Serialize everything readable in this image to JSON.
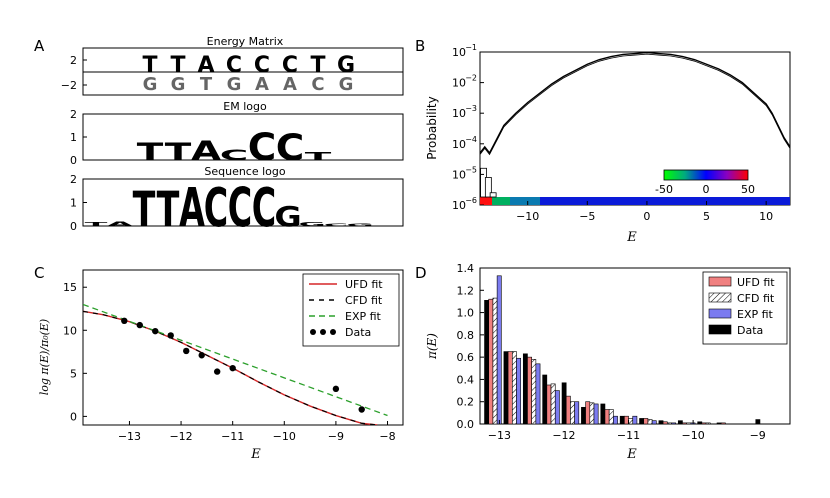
{
  "figure": {
    "panel_labels": [
      "A",
      "B",
      "C",
      "D"
    ]
  },
  "chart_data": [
    {
      "panel": "A",
      "type": "other",
      "subpanels": [
        {
          "title": "Energy Matrix",
          "yticks": [
            "2",
            "−2"
          ],
          "columns": [
            {
              "top": [
                [
                  "T",
                  "#d62728"
                ]
              ],
              "bottom": [
                [
                  "G",
                  "#f2a93b"
                ]
              ]
            },
            {
              "top": [
                [
                  "T",
                  "#d62728"
                ]
              ],
              "bottom": [
                [
                  "G",
                  "#f2a93b"
                ]
              ]
            },
            {
              "top": [
                [
                  "A",
                  "#2ca02c"
                ]
              ],
              "bottom": [
                [
                  "T",
                  "#d62728"
                ]
              ]
            },
            {
              "top": [
                [
                  "C",
                  "#1f3bd6"
                ]
              ],
              "bottom": [
                [
                  "G",
                  "#f2a93b"
                ]
              ]
            },
            {
              "top": [
                [
                  "C",
                  "#1f3bd6"
                ]
              ],
              "bottom": [
                [
                  "A",
                  "#2ca02c"
                ]
              ]
            },
            {
              "top": [
                [
                  "C",
                  "#1f3bd6"
                ]
              ],
              "bottom": [
                [
                  "A",
                  "#2ca02c"
                ]
              ]
            },
            {
              "top": [
                [
                  "T",
                  "#d62728"
                ]
              ],
              "bottom": [
                [
                  "C",
                  "#1f3bd6"
                ]
              ]
            },
            {
              "top": [
                [
                  "G",
                  "#f2a93b"
                ]
              ],
              "bottom": [
                [
                  "G",
                  "#f2a93b"
                ]
              ]
            }
          ]
        },
        {
          "title": "EM logo",
          "yticks": [
            "2",
            "1",
            "0"
          ],
          "letters": [
            "T",
            "T",
            "A",
            "C",
            "C",
            "C",
            "T",
            ""
          ],
          "colors": [
            "#d62728",
            "#d62728",
            "#2ca02c",
            "#1f3bd6",
            "#1f3bd6",
            "#1f3bd6",
            "#d62728",
            "#d62728"
          ],
          "heights": [
            0.75,
            0.75,
            0.85,
            0.45,
            1.2,
            1.15,
            0.35,
            0.05
          ]
        },
        {
          "title": "Sequence logo",
          "yticks": [
            "2",
            "1",
            "0"
          ],
          "letters": [
            "T",
            "A",
            "T",
            "T",
            "A",
            "C",
            "C",
            "C",
            "G",
            "G",
            "C",
            "G"
          ],
          "colors": [
            "#d62728",
            "#2ca02c",
            "#d62728",
            "#d62728",
            "#2ca02c",
            "#1f3bd6",
            "#1f3bd6",
            "#1f3bd6",
            "#f2a93b",
            "#f2a93b",
            "#1f3bd6",
            "#f2a93b"
          ],
          "heights": [
            0.15,
            0.2,
            1.5,
            1.5,
            1.65,
            1.65,
            1.7,
            1.65,
            0.85,
            0.15,
            0.1,
            0.12
          ]
        }
      ]
    },
    {
      "panel": "B",
      "type": "line",
      "ylabel": "Probability",
      "xlabel": "E",
      "xlim": [
        -14,
        12
      ],
      "ylim_log10": [
        -6,
        -1
      ],
      "xticks": [
        -10,
        -5,
        0,
        5,
        10
      ],
      "ytick_labels": [
        "10",
        "10",
        "10",
        "10",
        "10",
        "10"
      ],
      "ytick_exponents": [
        "−1",
        "−2",
        "−3",
        "−4",
        "−5",
        "−6"
      ],
      "curve_log10": {
        "x": [
          -14,
          -13.6,
          -13.2,
          -12.8,
          -12.4,
          -12,
          -11,
          -10,
          -9,
          -8,
          -7,
          -6,
          -5,
          -4,
          -3,
          -2,
          -1,
          0,
          1,
          2,
          3,
          4,
          5,
          6,
          7,
          8,
          9,
          10,
          10.5,
          11,
          11.5,
          12
        ],
        "y": [
          -4.3,
          -4.1,
          -4.3,
          -4.0,
          -3.7,
          -3.4,
          -3.0,
          -2.65,
          -2.35,
          -2.05,
          -1.8,
          -1.6,
          -1.4,
          -1.25,
          -1.15,
          -1.08,
          -1.05,
          -1.02,
          -1.05,
          -1.08,
          -1.15,
          -1.25,
          -1.4,
          -1.55,
          -1.75,
          -2.0,
          -2.35,
          -2.7,
          -3.0,
          -3.4,
          -3.8,
          -4.1
        ]
      },
      "histogram_log10": {
        "x": [
          -13.7,
          -13.3,
          -12.9,
          -12.5,
          -12.1,
          -11.7
        ],
        "y": [
          -4.8,
          -5.1,
          -5.6,
          -5.9,
          -5.9,
          -5.95
        ]
      },
      "colorbar": {
        "ticks": [
          "-50",
          "0",
          "50"
        ],
        "range": [
          -50,
          50
        ]
      }
    },
    {
      "panel": "C",
      "type": "line",
      "ylabel": "log π(E)/π₀(E)",
      "xlabel": "E",
      "xlim": [
        -13.9,
        -7.7
      ],
      "ylim": [
        -1,
        17
      ],
      "xticks": [
        -13,
        -12,
        -11,
        -10,
        -9,
        -8
      ],
      "yticks": [
        0,
        5,
        10,
        15
      ],
      "legend": [
        "UFD fit",
        "CFD fit",
        "EXP fit",
        "Data"
      ],
      "series": [
        {
          "name": "UFD fit",
          "color": "#d62728",
          "x": [
            -13.9,
            -13.5,
            -13,
            -12.5,
            -12,
            -11.5,
            -11,
            -10.5,
            -10,
            -9.5,
            -9,
            -8.5,
            -8.2
          ],
          "y": [
            12.2,
            11.8,
            11.0,
            9.9,
            8.6,
            7.1,
            5.6,
            4.0,
            2.5,
            1.2,
            0.1,
            -0.8,
            -1.0
          ]
        },
        {
          "name": "CFD fit",
          "color": "#000000",
          "x": [
            -13.9,
            -13.5,
            -13,
            -12.5,
            -12,
            -11.5,
            -11,
            -10.5,
            -10,
            -9.5,
            -9,
            -8.5,
            -8.2
          ],
          "y": [
            12.2,
            11.8,
            11.0,
            9.9,
            8.6,
            7.1,
            5.6,
            4.0,
            2.5,
            1.2,
            0.1,
            -0.8,
            -1.0
          ]
        },
        {
          "name": "EXP fit",
          "color": "#2ca02c",
          "x": [
            -13.9,
            -8.0
          ],
          "y": [
            13.0,
            0.1
          ]
        },
        {
          "name": "Data",
          "color": "#000000",
          "x": [
            -13.1,
            -12.8,
            -12.5,
            -12.2,
            -11.9,
            -11.6,
            -11.3,
            -11.0,
            -9.0,
            -8.5
          ],
          "y": [
            11.1,
            10.6,
            9.9,
            9.4,
            7.6,
            7.1,
            5.2,
            5.6,
            3.2,
            0.8
          ]
        }
      ]
    },
    {
      "panel": "D",
      "type": "bar",
      "ylabel": "π(E)",
      "xlabel": "E",
      "xlim": [
        -13.3,
        -8.5
      ],
      "ylim": [
        0,
        1.4
      ],
      "xticks": [
        -13,
        -12,
        -11,
        -10,
        -9
      ],
      "yticks": [
        0.0,
        0.2,
        0.4,
        0.6,
        0.8,
        1.0,
        1.2,
        1.4
      ],
      "legend": [
        "UFD fit",
        "CFD fit",
        "EXP fit",
        "Data"
      ],
      "categories": [
        -13.1,
        -12.8,
        -12.5,
        -12.2,
        -11.9,
        -11.6,
        -11.3,
        -11.0,
        -10.7,
        -10.4,
        -10.1,
        -9.8,
        -9.5,
        -9.2,
        -8.9,
        -8.6
      ],
      "series": [
        {
          "name": "Data",
          "color": "#000000",
          "values": [
            1.11,
            0.65,
            0.63,
            0.44,
            0.37,
            0.15,
            0.18,
            0.07,
            0.05,
            0.03,
            0.03,
            0.02,
            0.01,
            0.0,
            0.04,
            0.0
          ]
        },
        {
          "name": "UFD fit",
          "color": "#f08080",
          "values": [
            1.12,
            0.65,
            0.6,
            0.35,
            0.25,
            0.2,
            0.13,
            0.07,
            0.05,
            0.02,
            0.01,
            0.01,
            0.01,
            0.0,
            0.0,
            0.0
          ]
        },
        {
          "name": "CFD fit",
          "color": "#ffffff",
          "values": [
            1.13,
            0.65,
            0.58,
            0.36,
            0.2,
            0.19,
            0.13,
            0.05,
            0.04,
            0.01,
            0.01,
            0.01,
            0.0,
            0.0,
            0.0,
            0.0
          ]
        },
        {
          "name": "EXP fit",
          "color": "#7b7bf0",
          "values": [
            1.33,
            0.59,
            0.54,
            0.3,
            0.2,
            0.18,
            0.07,
            0.07,
            0.03,
            0.01,
            0.01,
            0.0,
            0.0,
            0.0,
            0.0,
            0.0
          ]
        }
      ]
    }
  ]
}
